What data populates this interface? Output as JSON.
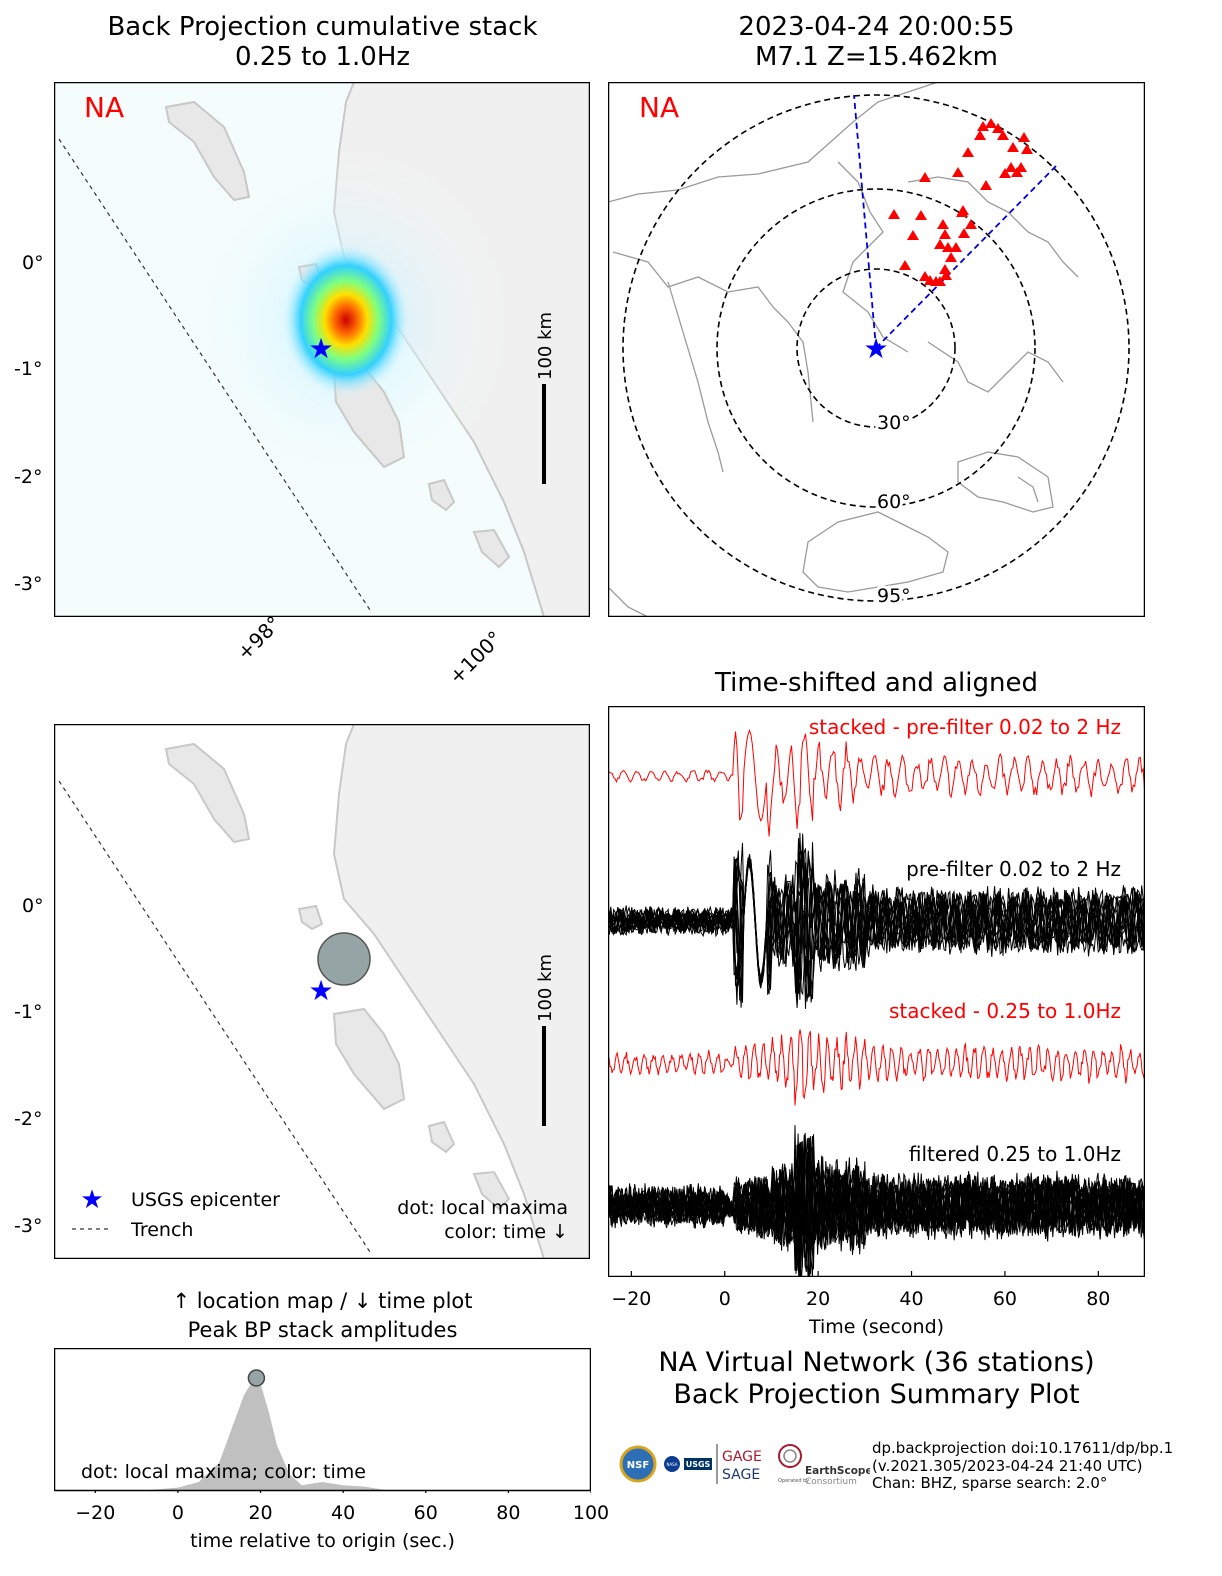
{
  "map_panel": {
    "title_line1": "Back Projection cumulative stack",
    "title_line2": "0.25 to 1.0Hz",
    "network_label": "NA",
    "lat_ticks": [
      "0°",
      "-1°",
      "-2°",
      "-3°"
    ],
    "lon_ticks": [
      "+98°",
      "+100°"
    ],
    "scale_label": "100 km"
  },
  "global_panel": {
    "title_line1": "2023-04-24 20:00:55",
    "title_line2": "M7.1 Z=15.462km",
    "network_label": "NA",
    "ring_labels": [
      "30°",
      "60°",
      "95°"
    ]
  },
  "maxima_panel": {
    "lat_ticks": [
      "0°",
      "-1°",
      "-2°",
      "-3°"
    ],
    "scale_label": "100 km",
    "legend_epicenter": "USGS epicenter",
    "legend_trench": "Trench",
    "note_line1": "dot: local maxima",
    "note_line2": "color: time ↓"
  },
  "amp_panel": {
    "title_line1": "↑ location map / ↓ time plot",
    "title_line2": "Peak BP stack amplitudes",
    "note": "dot: local maxima; color: time",
    "xlabel": "time relative to origin (sec.)",
    "xticks": [
      "−20",
      "0",
      "20",
      "40",
      "60",
      "80",
      "100"
    ]
  },
  "trace_panel": {
    "title": "Time-shifted and aligned",
    "label_stacked_broad": "stacked - pre-filter 0.02 to 2 Hz",
    "label_broad": "pre-filter 0.02 to 2 Hz",
    "label_stacked_narrow": "stacked - 0.25 to 1.0Hz",
    "label_narrow": "filtered 0.25 to 1.0Hz",
    "xlabel": "Time (second)",
    "xticks": [
      "−20",
      "0",
      "20",
      "40",
      "60",
      "80"
    ]
  },
  "summary": {
    "line1": "NA Virtual Network (36 stations)",
    "line2": "Back Projection Summary Plot",
    "credit1": "dp.backprojection doi:10.17611/dp/bp.1",
    "credit2": "(v.2021.305/2023-04-24 21:40 UTC)",
    "credit3": "Chan: BHZ, sparse search: 2.0°"
  },
  "logos": {
    "nsf": "NSF",
    "nasa": "NASA",
    "usgs": "USGS",
    "gage": "GAGE",
    "sage": "SAGE",
    "earthscope": "EarthScope",
    "operated": "Operated by",
    "consortium": "Consortium"
  },
  "colors": {
    "epicenter": "#0000ff",
    "station": "#ff0000",
    "stack_trace": "#ff0000",
    "network_label": "#ff0000",
    "land": "#f2f2f2",
    "coast": "#c8c8c8",
    "amp_fill": "#c0c0c0",
    "maxima_dot": "#95a5a6"
  },
  "chart_data": [
    {
      "type": "line",
      "title": "Peak BP stack amplitudes",
      "xlabel": "time relative to origin (sec.)",
      "xlim": [
        -30,
        100
      ],
      "x": [
        -30,
        -10,
        0,
        5,
        10,
        13,
        16,
        18,
        19,
        20,
        22,
        24,
        27,
        30,
        35,
        40,
        45,
        50,
        60,
        100
      ],
      "values": [
        0,
        0,
        0.03,
        0.08,
        0.25,
        0.55,
        0.85,
        0.97,
        1.0,
        0.95,
        0.7,
        0.4,
        0.15,
        0.05,
        0.08,
        0.05,
        0.04,
        0.01,
        0,
        0
      ],
      "local_maxima": [
        {
          "time": 19,
          "amplitude": 1.0
        }
      ]
    },
    {
      "type": "line",
      "title": "Time-shifted and aligned",
      "xlabel": "Time (second)",
      "xlim": [
        -25,
        90
      ],
      "series": [
        {
          "name": "stacked - pre-filter 0.02 to 2 Hz"
        },
        {
          "name": "pre-filter 0.02 to 2 Hz"
        },
        {
          "name": "stacked - 0.25 to 1.0Hz"
        },
        {
          "name": "filtered 0.25 to 1.0Hz"
        }
      ]
    }
  ]
}
